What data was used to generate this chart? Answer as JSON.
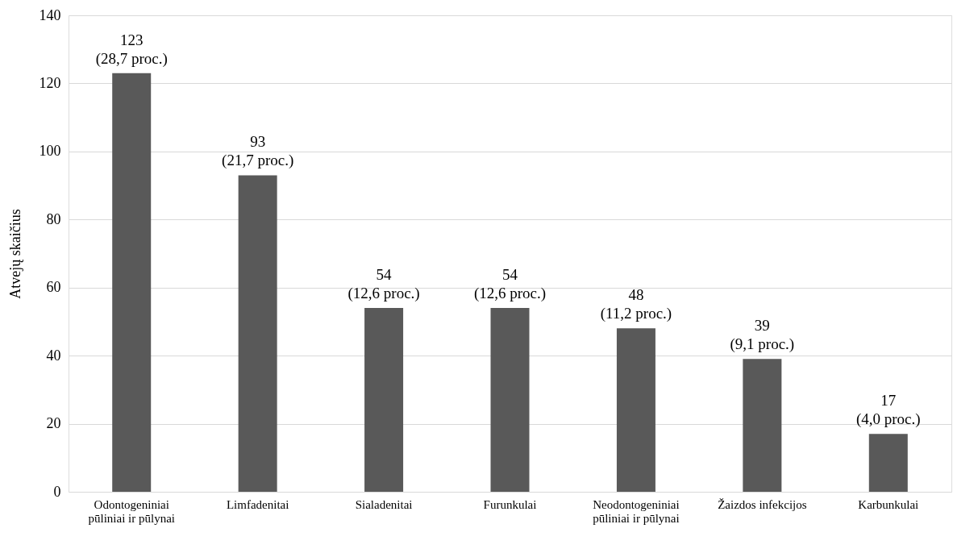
{
  "chart_data": {
    "type": "bar",
    "ylabel": "Atvejų skaičius",
    "categories": [
      "Odontogeniniai pūliniai ir pūlynai",
      "Limfadenitai",
      "Sialadenitai",
      "Furunkulai",
      "Neodontogeniniai pūliniai ir pūlynai",
      "Žaizdos infekcijos",
      "Karbunkulai"
    ],
    "values": [
      123,
      93,
      54,
      54,
      48,
      39,
      17
    ],
    "value_labels": [
      "123 (28,7 proc.)",
      "93 (21,7 proc.)",
      "54 (12,6 proc.)",
      "54 (12,6 proc.)",
      "48 (11,2 proc.)",
      "39 (9,1 proc.)",
      "17 (4,0 proc.)"
    ],
    "color": "#595959",
    "ylim": [
      0,
      140
    ],
    "yticks": [
      0,
      20,
      40,
      60,
      80,
      100,
      120,
      140
    ],
    "grid": "y"
  }
}
